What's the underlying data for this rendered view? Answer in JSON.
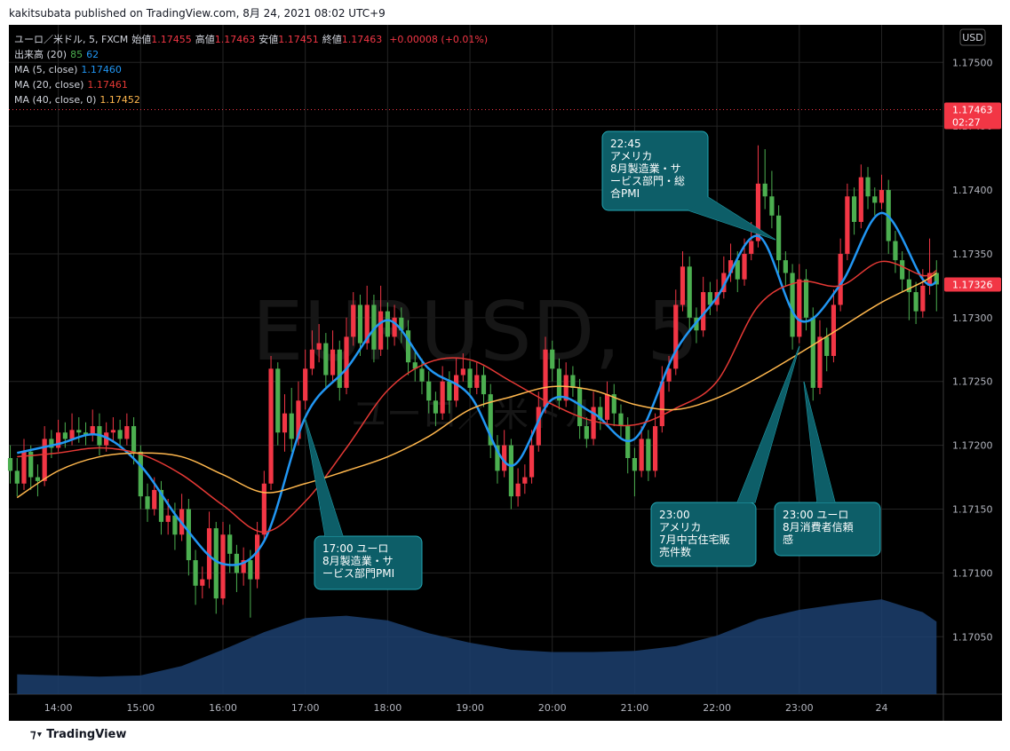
{
  "header": {
    "byline": "kakitsubata published on TradingView.com, 8月 24, 2021 08:02 UTC+9"
  },
  "chart_data": {
    "type": "candlestick",
    "symbol": "ユーロ／米ドル, 5, FXCM",
    "ohlc_legend": [
      {
        "label": "始値",
        "value": 1.17455
      },
      {
        "label": "高値",
        "value": 1.17463
      },
      {
        "label": "安値",
        "value": 1.17451
      },
      {
        "label": "終値",
        "value": 1.17463
      }
    ],
    "change": "+0.00008 (+0.01%)",
    "volume_legend": {
      "label": "出来高 (20)",
      "volume": 85,
      "average": 62,
      "volume_color": "#4caf50",
      "average_color": "#2196f3"
    },
    "up_color": "#f23645",
    "down_color": "#4caf50",
    "x": [
      805,
      810,
      815,
      820,
      825,
      830,
      835,
      840,
      845,
      850,
      855,
      860,
      865,
      870,
      875,
      880,
      885,
      890,
      895,
      900,
      905,
      910,
      915,
      920,
      925,
      930,
      935,
      940,
      945,
      950,
      955,
      960,
      965,
      970,
      975,
      980,
      985,
      990,
      995,
      1000,
      1005,
      1010,
      1015,
      1020,
      1025,
      1030,
      1035,
      1040,
      1045,
      1050,
      1055,
      1060,
      1065,
      1070,
      1075,
      1080,
      1085,
      1090,
      1095,
      1100,
      1105,
      1110,
      1115,
      1120,
      1125,
      1130,
      1135,
      1140,
      1145,
      1150,
      1155,
      1160,
      1165,
      1170,
      1175,
      1180,
      1185,
      1190,
      1195,
      1200,
      1205,
      1210,
      1215,
      1220,
      1225,
      1230,
      1235,
      1240,
      1245,
      1250,
      1255,
      1260,
      1265,
      1270,
      1275,
      1280,
      1285,
      1290,
      1295,
      1300,
      1305,
      1310,
      1315,
      1320,
      1325,
      1330,
      1335,
      1340,
      1345,
      1350,
      1355,
      1360,
      1365,
      1370,
      1375,
      1380,
      1385,
      1390,
      1395,
      1400,
      1405,
      1410,
      1415,
      1420,
      1425,
      1430,
      1435,
      1440,
      1445,
      1450,
      1455,
      1460,
      1465,
      1470,
      1475,
      1480
    ],
    "ohlc": [
      [
        1.1719,
        1.172,
        1.1717,
        1.1718
      ],
      [
        1.1718,
        1.1719,
        1.1716,
        1.1717
      ],
      [
        1.1717,
        1.17205,
        1.17165,
        1.17195
      ],
      [
        1.17195,
        1.172,
        1.17165,
        1.17175
      ],
      [
        1.17175,
        1.17185,
        1.1716,
        1.17172
      ],
      [
        1.17172,
        1.17215,
        1.17168,
        1.17205
      ],
      [
        1.17205,
        1.17212,
        1.1719,
        1.17198
      ],
      [
        1.17198,
        1.1722,
        1.17195,
        1.1721
      ],
      [
        1.1721,
        1.17218,
        1.17198,
        1.17205
      ],
      [
        1.17205,
        1.17225,
        1.172,
        1.17212
      ],
      [
        1.17212,
        1.17222,
        1.17202,
        1.1721
      ],
      [
        1.1721,
        1.17218,
        1.172,
        1.17208
      ],
      [
        1.17208,
        1.17228,
        1.17203,
        1.17215
      ],
      [
        1.17215,
        1.17225,
        1.17192,
        1.172
      ],
      [
        1.172,
        1.17218,
        1.17195,
        1.1721
      ],
      [
        1.1721,
        1.17222,
        1.17203,
        1.17212
      ],
      [
        1.17212,
        1.1722,
        1.17198,
        1.17205
      ],
      [
        1.17205,
        1.17225,
        1.172,
        1.17215
      ],
      [
        1.17215,
        1.17222,
        1.17185,
        1.17195
      ],
      [
        1.17195,
        1.172,
        1.1715,
        1.1716
      ],
      [
        1.1716,
        1.1717,
        1.1714,
        1.1715
      ],
      [
        1.1715,
        1.17175,
        1.17145,
        1.17165
      ],
      [
        1.17165,
        1.17172,
        1.1713,
        1.1714
      ],
      [
        1.1714,
        1.17158,
        1.1713,
        1.17145
      ],
      [
        1.17145,
        1.17155,
        1.17118,
        1.1713
      ],
      [
        1.1713,
        1.17162,
        1.17125,
        1.1715
      ],
      [
        1.1715,
        1.17158,
        1.17098,
        1.1711
      ],
      [
        1.1711,
        1.17118,
        1.17075,
        1.1709
      ],
      [
        1.1709,
        1.17105,
        1.1708,
        1.17095
      ],
      [
        1.17095,
        1.17148,
        1.17088,
        1.17135
      ],
      [
        1.17135,
        1.1714,
        1.17068,
        1.1708
      ],
      [
        1.1708,
        1.1714,
        1.17075,
        1.1713
      ],
      [
        1.1713,
        1.17138,
        1.171,
        1.17115
      ],
      [
        1.17115,
        1.17122,
        1.17085,
        1.171
      ],
      [
        1.171,
        1.1712,
        1.1709,
        1.1711
      ],
      [
        1.1711,
        1.17118,
        1.17065,
        1.17095
      ],
      [
        1.17095,
        1.1714,
        1.17088,
        1.1713
      ],
      [
        1.1713,
        1.1718,
        1.17125,
        1.1717
      ],
      [
        1.1717,
        1.1727,
        1.17165,
        1.1726
      ],
      [
        1.1726,
        1.17265,
        1.172,
        1.1721
      ],
      [
        1.1721,
        1.1724,
        1.17195,
        1.17225
      ],
      [
        1.17225,
        1.17245,
        1.17195,
        1.17205
      ],
      [
        1.17205,
        1.1725,
        1.172,
        1.17235
      ],
      [
        1.17235,
        1.17275,
        1.17228,
        1.1726
      ],
      [
        1.1726,
        1.1729,
        1.17255,
        1.17275
      ],
      [
        1.17275,
        1.17295,
        1.17265,
        1.1728
      ],
      [
        1.1728,
        1.17288,
        1.17245,
        1.17255
      ],
      [
        1.17255,
        1.1729,
        1.1725,
        1.17275
      ],
      [
        1.17275,
        1.17282,
        1.17235,
        1.17245
      ],
      [
        1.17245,
        1.173,
        1.1724,
        1.17285
      ],
      [
        1.17285,
        1.1732,
        1.17278,
        1.1731
      ],
      [
        1.1731,
        1.17318,
        1.1727,
        1.1728
      ],
      [
        1.1728,
        1.17325,
        1.17275,
        1.1731
      ],
      [
        1.1731,
        1.17318,
        1.17265,
        1.17275
      ],
      [
        1.17275,
        1.17325,
        1.1727,
        1.17305
      ],
      [
        1.17305,
        1.17312,
        1.17275,
        1.17285
      ],
      [
        1.17285,
        1.1731,
        1.17278,
        1.173
      ],
      [
        1.173,
        1.17308,
        1.1728,
        1.1729
      ],
      [
        1.1729,
        1.17298,
        1.17255,
        1.17265
      ],
      [
        1.17265,
        1.17275,
        1.1725,
        1.1726
      ],
      [
        1.1726,
        1.17268,
        1.1724,
        1.1725
      ],
      [
        1.1725,
        1.17258,
        1.17225,
        1.17235
      ],
      [
        1.17235,
        1.17242,
        1.17215,
        1.17225
      ],
      [
        1.17225,
        1.17262,
        1.1722,
        1.1725
      ],
      [
        1.1725,
        1.17258,
        1.17225,
        1.17235
      ],
      [
        1.17235,
        1.17268,
        1.1723,
        1.17255
      ],
      [
        1.17255,
        1.17272,
        1.1725,
        1.1726
      ],
      [
        1.1726,
        1.17266,
        1.17238,
        1.17245
      ],
      [
        1.17245,
        1.17265,
        1.1724,
        1.17255
      ],
      [
        1.17255,
        1.17262,
        1.1723,
        1.1724
      ],
      [
        1.1724,
        1.17248,
        1.1719,
        1.172
      ],
      [
        1.172,
        1.17208,
        1.1717,
        1.1718
      ],
      [
        1.1718,
        1.17212,
        1.17175,
        1.172
      ],
      [
        1.172,
        1.17205,
        1.1715,
        1.1716
      ],
      [
        1.1716,
        1.17182,
        1.17152,
        1.1717
      ],
      [
        1.1717,
        1.17185,
        1.17162,
        1.17175
      ],
      [
        1.17175,
        1.17212,
        1.1717,
        1.172
      ],
      [
        1.172,
        1.17242,
        1.17195,
        1.1723
      ],
      [
        1.1723,
        1.17285,
        1.17225,
        1.17275
      ],
      [
        1.17275,
        1.17282,
        1.1725,
        1.1726
      ],
      [
        1.1726,
        1.17268,
        1.17228,
        1.17235
      ],
      [
        1.17235,
        1.17265,
        1.1723,
        1.17255
      ],
      [
        1.17255,
        1.17262,
        1.17238,
        1.17245
      ],
      [
        1.17245,
        1.17252,
        1.17205,
        1.17215
      ],
      [
        1.17215,
        1.17222,
        1.17198,
        1.17205
      ],
      [
        1.17205,
        1.17242,
        1.172,
        1.1723
      ],
      [
        1.1723,
        1.17238,
        1.17212,
        1.1722
      ],
      [
        1.1722,
        1.1725,
        1.17215,
        1.1724
      ],
      [
        1.1724,
        1.17248,
        1.17215,
        1.17225
      ],
      [
        1.17225,
        1.17232,
        1.17205,
        1.17215
      ],
      [
        1.17215,
        1.17222,
        1.17178,
        1.1719
      ],
      [
        1.1719,
        1.17198,
        1.1716,
        1.1718
      ],
      [
        1.1718,
        1.17215,
        1.17175,
        1.17205
      ],
      [
        1.17205,
        1.17212,
        1.17172,
        1.1718
      ],
      [
        1.1718,
        1.17225,
        1.17175,
        1.17215
      ],
      [
        1.17215,
        1.17262,
        1.1721,
        1.1725
      ],
      [
        1.1725,
        1.1727,
        1.17242,
        1.1726
      ],
      [
        1.1726,
        1.17322,
        1.17255,
        1.1731
      ],
      [
        1.1731,
        1.17352,
        1.17305,
        1.1734
      ],
      [
        1.1734,
        1.17348,
        1.1729,
        1.173
      ],
      [
        1.173,
        1.17308,
        1.1728,
        1.1729
      ],
      [
        1.1729,
        1.17332,
        1.17285,
        1.1732
      ],
      [
        1.1732,
        1.17328,
        1.17302,
        1.1731
      ],
      [
        1.1731,
        1.1733,
        1.17305,
        1.1732
      ],
      [
        1.1732,
        1.17348,
        1.17315,
        1.17335
      ],
      [
        1.17335,
        1.17358,
        1.17328,
        1.17345
      ],
      [
        1.17345,
        1.17352,
        1.1732,
        1.1733
      ],
      [
        1.1733,
        1.17362,
        1.17325,
        1.1735
      ],
      [
        1.1735,
        1.17375,
        1.17345,
        1.1736
      ],
      [
        1.1736,
        1.17435,
        1.17355,
        1.17405
      ],
      [
        1.17405,
        1.17432,
        1.17385,
        1.17395
      ],
      [
        1.17395,
        1.17415,
        1.1737,
        1.1738
      ],
      [
        1.1738,
        1.17388,
        1.17335,
        1.17345
      ],
      [
        1.17345,
        1.17352,
        1.17325,
        1.17335
      ],
      [
        1.17335,
        1.17342,
        1.17275,
        1.17285
      ],
      [
        1.17285,
        1.17342,
        1.1728,
        1.1733
      ],
      [
        1.1733,
        1.17338,
        1.1729,
        1.173
      ],
      [
        1.173,
        1.17308,
        1.17235,
        1.17245
      ],
      [
        1.17245,
        1.17298,
        1.1724,
        1.17285
      ],
      [
        1.17285,
        1.17292,
        1.17258,
        1.1727
      ],
      [
        1.1727,
        1.17322,
        1.17265,
        1.1731
      ],
      [
        1.1731,
        1.17362,
        1.17305,
        1.1735
      ],
      [
        1.1735,
        1.17405,
        1.17345,
        1.17395
      ],
      [
        1.17395,
        1.17402,
        1.17365,
        1.17375
      ],
      [
        1.17375,
        1.1742,
        1.1737,
        1.1741
      ],
      [
        1.1741,
        1.17418,
        1.17385,
        1.17395
      ],
      [
        1.17395,
        1.17402,
        1.1738,
        1.1739
      ],
      [
        1.1739,
        1.17412,
        1.17385,
        1.174
      ],
      [
        1.174,
        1.17408,
        1.1735,
        1.1736
      ],
      [
        1.1736,
        1.17368,
        1.17335,
        1.17345
      ],
      [
        1.17345,
        1.17352,
        1.1732,
        1.1733
      ],
      [
        1.1733,
        1.17338,
        1.17298,
        1.1732
      ],
      [
        1.1732,
        1.17328,
        1.17295,
        1.17305
      ],
      [
        1.17305,
        1.17338,
        1.173,
        1.17325
      ],
      [
        1.17325,
        1.17362,
        1.17318,
        1.17335
      ],
      [
        1.17335,
        1.17345,
        1.17305,
        1.17326
      ]
    ],
    "xlim": [
      804,
      1485
    ],
    "xticks": [
      {
        "value": 840,
        "label": "14:00"
      },
      {
        "value": 900,
        "label": "15:00"
      },
      {
        "value": 960,
        "label": "16:00"
      },
      {
        "value": 1020,
        "label": "17:00"
      },
      {
        "value": 1080,
        "label": "18:00"
      },
      {
        "value": 1140,
        "label": "19:00"
      },
      {
        "value": 1200,
        "label": "20:00"
      },
      {
        "value": 1260,
        "label": "21:00"
      },
      {
        "value": 1320,
        "label": "22:00"
      },
      {
        "value": 1380,
        "label": "23:00"
      },
      {
        "value": 1440,
        "label": "24"
      }
    ],
    "ylim": [
      1.17005,
      1.17528
    ],
    "yticks": [
      {
        "value": 1.1705,
        "label": "1.17050"
      },
      {
        "value": 1.171,
        "label": "1.17100"
      },
      {
        "value": 1.1715,
        "label": "1.17150"
      },
      {
        "value": 1.172,
        "label": "1.17200"
      },
      {
        "value": 1.1725,
        "label": "1.17250"
      },
      {
        "value": 1.173,
        "label": "1.17300"
      },
      {
        "value": 1.1735,
        "label": "1.17350"
      },
      {
        "value": 1.174,
        "label": "1.17400"
      },
      {
        "value": 1.1745,
        "label": "1.17450"
      },
      {
        "value": 1.175,
        "label": "1.17500"
      }
    ],
    "grid": true,
    "moving_averages": [
      {
        "name": "MA (5, close)",
        "last": {
          "value": 1.1746,
          "label": "1.17460"
        },
        "color": "#2196f3",
        "width": 2.5,
        "x": [
          810,
          840,
          870,
          900,
          930,
          960,
          990,
          1020,
          1050,
          1080,
          1110,
          1140,
          1170,
          1200,
          1230,
          1260,
          1290,
          1320,
          1350,
          1380,
          1410,
          1440,
          1470,
          1480
        ],
        "values": [
          1.17194,
          1.17201,
          1.17208,
          1.17184,
          1.17139,
          1.17107,
          1.17125,
          1.17222,
          1.1726,
          1.17298,
          1.1726,
          1.17239,
          1.17184,
          1.17236,
          1.17225,
          1.17205,
          1.17274,
          1.17316,
          1.17364,
          1.17298,
          1.17326,
          1.17382,
          1.1733,
          1.17328
        ]
      },
      {
        "name": "MA (20, close)",
        "last": 1.17461,
        "color": "#e53935",
        "width": 1.5,
        "x": [
          810,
          840,
          870,
          900,
          930,
          960,
          990,
          1020,
          1050,
          1080,
          1110,
          1140,
          1170,
          1200,
          1230,
          1260,
          1290,
          1320,
          1350,
          1380,
          1410,
          1440,
          1470,
          1480
        ],
        "values": [
          1.17191,
          1.17194,
          1.17198,
          1.17193,
          1.17177,
          1.17153,
          1.17132,
          1.17156,
          1.17198,
          1.17243,
          1.17265,
          1.17267,
          1.1725,
          1.17232,
          1.17219,
          1.17216,
          1.17229,
          1.1725,
          1.17309,
          1.17328,
          1.17325,
          1.17344,
          1.17333,
          1.17337
        ]
      },
      {
        "name": "MA (40, close, 0)",
        "last": 1.17452,
        "color": "#ffb74d",
        "width": 1.5,
        "x": [
          810,
          840,
          870,
          900,
          930,
          960,
          990,
          1020,
          1050,
          1080,
          1110,
          1140,
          1170,
          1200,
          1230,
          1260,
          1290,
          1320,
          1350,
          1380,
          1410,
          1440,
          1470,
          1480
        ],
        "values": [
          1.17159,
          1.1718,
          1.17191,
          1.17194,
          1.17191,
          1.17177,
          1.17163,
          1.1717,
          1.1718,
          1.17191,
          1.17207,
          1.17228,
          1.17238,
          1.17246,
          1.17243,
          1.17232,
          1.17228,
          1.17237,
          1.17253,
          1.17272,
          1.17292,
          1.17312,
          1.17328,
          1.17335
        ]
      }
    ],
    "volume_ma": {
      "color": "#1c3f6e",
      "ylim": [
        0,
        570
      ],
      "x": [
        810,
        840,
        870,
        900,
        930,
        960,
        990,
        1020,
        1050,
        1080,
        1110,
        1140,
        1170,
        1200,
        1230,
        1260,
        1290,
        1320,
        1350,
        1380,
        1410,
        1440,
        1470,
        1480
      ],
      "values": [
        17,
        16,
        15,
        16,
        24,
        38,
        53,
        65,
        67,
        63,
        52,
        44,
        38,
        36,
        36,
        37,
        41,
        50,
        64,
        72,
        77,
        81,
        70,
        62
      ]
    },
    "price_lines": [
      {
        "value": 1.17463,
        "countdown": "02:27",
        "color": "#f23645",
        "dotted": true
      },
      {
        "value": 1.17326,
        "color": "#f23645",
        "dotted": false
      }
    ],
    "currency": "USD",
    "watermark": [
      "EURUSD, 5",
      "ユーロ／米ドル"
    ],
    "annotations": [
      {
        "lines": [
          "17:00 ユーロ",
          "8月製造業・サ",
          "ービス部門PMI"
        ]
      },
      {
        "lines": [
          "22:45",
          "アメリカ",
          "8月製造業・サ",
          "ービス部門・総",
          "合PMI"
        ]
      },
      {
        "lines": [
          "23:00",
          "アメリカ",
          "7月中古住宅販",
          "売件数"
        ]
      },
      {
        "lines": [
          "23:00 ユーロ",
          "8月消費者信頼",
          "感"
        ]
      }
    ]
  },
  "footer": {
    "brand": "TradingView"
  }
}
